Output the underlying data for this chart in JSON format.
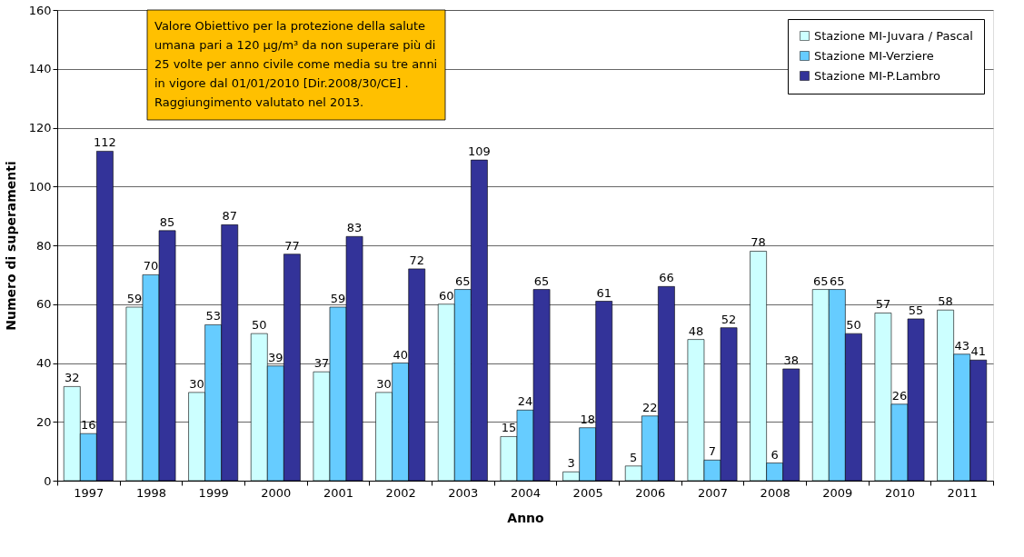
{
  "chart_data": {
    "type": "bar",
    "xlabel": "Anno",
    "ylabel": "Numero di superamenti",
    "categories": [
      "1997",
      "1998",
      "1999",
      "2000",
      "2001",
      "2002",
      "2003",
      "2004",
      "2005",
      "2006",
      "2007",
      "2008",
      "2009",
      "2010",
      "2011"
    ],
    "series": [
      {
        "name": "Stazione MI-Juvara / Pascal",
        "color": "#ccffff",
        "values": [
          32,
          59,
          30,
          50,
          37,
          30,
          60,
          15,
          3,
          5,
          48,
          78,
          65,
          57,
          58
        ]
      },
      {
        "name": "Stazione MI-Verziere",
        "color": "#66ccff",
        "values": [
          16,
          70,
          53,
          39,
          59,
          40,
          65,
          24,
          18,
          22,
          7,
          6,
          65,
          26,
          43
        ]
      },
      {
        "name": "Stazione MI-P.Lambro",
        "color": "#333399",
        "values": [
          112,
          85,
          87,
          77,
          83,
          72,
          109,
          65,
          61,
          66,
          52,
          38,
          50,
          55,
          41
        ]
      }
    ],
    "ylim": [
      0,
      160
    ],
    "yticks": [
      0,
      20,
      40,
      60,
      80,
      100,
      120,
      140,
      160
    ],
    "grid": "y",
    "legend": "top right",
    "data_labels": true,
    "annotations": [
      "Valore Obiettivo per la protezione della salute\numana pari a 120 µg/m³  da non superare più di\n25 volte per anno  civile come media su tre anni\nin vigore dal 01/01/2010 [Dir.2008/30/CE] .\nRaggiungimento  valutato  nel 2013."
    ]
  }
}
